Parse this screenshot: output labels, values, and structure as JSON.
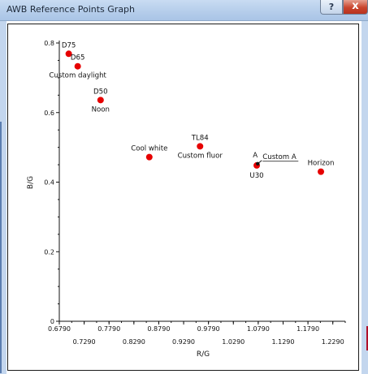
{
  "window": {
    "title": "AWB Reference Points Graph",
    "help_glyph": "?",
    "close_glyph": "x"
  },
  "chart_data": {
    "type": "scatter",
    "xlabel": "R/G",
    "ylabel": "B/G",
    "xlim": [
      0.679,
      1.254
    ],
    "ylim": [
      0,
      0.8
    ],
    "x_ticks_upper": [
      "0.6790",
      "0.7790",
      "0.8790",
      "0.9790",
      "1.0790",
      "1.1790"
    ],
    "x_ticks_lower": [
      "0.7290",
      "0.8290",
      "0.9290",
      "1.0290",
      "1.1290",
      "1.2290"
    ],
    "y_ticks": [
      "0",
      "0.2",
      "0.4",
      "0.6",
      "0.8"
    ],
    "grid": false,
    "points": [
      {
        "x": 0.698,
        "y": 0.769,
        "label": "D75",
        "color": "#e60000"
      },
      {
        "x": 0.716,
        "y": 0.733,
        "label": "D65",
        "color": "#e60000",
        "label2": "Custom daylight"
      },
      {
        "x": 0.762,
        "y": 0.636,
        "label": "D50",
        "color": "#e60000",
        "label2": "Noon"
      },
      {
        "x": 0.86,
        "y": 0.472,
        "label": "Cool white",
        "color": "#e60000"
      },
      {
        "x": 0.962,
        "y": 0.503,
        "label": "TL84",
        "color": "#e60000",
        "label2": "Custom fluor"
      },
      {
        "x": 1.076,
        "y": 0.448,
        "label": "U30",
        "color": "#e60000"
      },
      {
        "x": 1.205,
        "y": 0.43,
        "label": "Horizon",
        "color": "#e60000"
      }
    ],
    "custom_marker": {
      "x": 1.078,
      "y": 0.453,
      "label": "A",
      "tag": "Custom A",
      "color": "#111111"
    }
  }
}
